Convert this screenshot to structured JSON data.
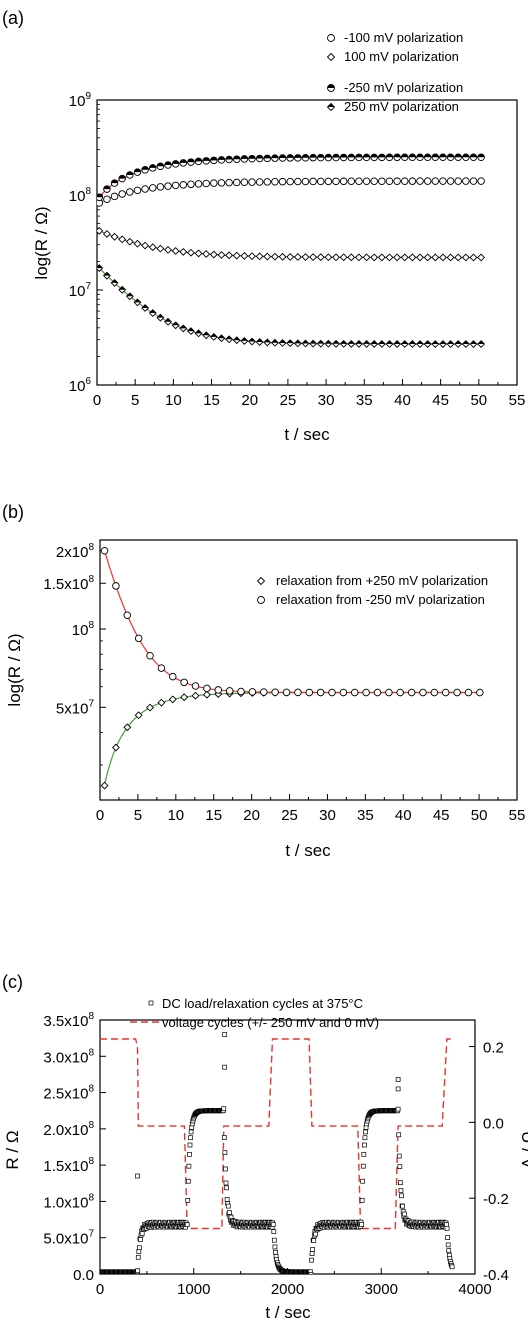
{
  "chart_data": [
    {
      "type": "scatter",
      "panel_label": "(a)",
      "xlabel": "t / sec",
      "ylabel": "log(R / Ω)",
      "xlim": [
        0,
        55
      ],
      "ylim": [
        1000000,
        1000000000
      ],
      "yscale": "log",
      "x_ticks": [
        "0",
        "5",
        "10",
        "15",
        "20",
        "25",
        "30",
        "35",
        "40",
        "45",
        "50",
        "55"
      ],
      "y_ticks": [
        {
          "base": "10",
          "exp": "6"
        },
        {
          "base": "10",
          "exp": "7"
        },
        {
          "base": "10",
          "exp": "8"
        },
        {
          "base": "10",
          "exp": "9"
        }
      ],
      "legend_position": "top-right",
      "series": [
        {
          "name": "-100 mV polarization",
          "marker": "circle",
          "fit_color": "#e8332a",
          "start": 80000000,
          "end": 140000000,
          "tau": 7
        },
        {
          "name": "100 mV polarization",
          "marker": "diamond",
          "fit_color": "#4a9a3a",
          "start": 43000000,
          "end": 22000000,
          "tau": 6
        },
        {
          "name": "-250 mV polarization",
          "marker": "circle-half-top",
          "fit_color": "#e8332a",
          "start": 88000000,
          "end": 250000000,
          "tau": 7
        },
        {
          "name": "250 mV polarization",
          "marker": "diamond-half-top",
          "fit_color": "#4a9a3a",
          "start": 18000000,
          "end": 2700000,
          "tau": 4.5
        }
      ]
    },
    {
      "type": "scatter",
      "panel_label": "(b)",
      "xlabel": "t / sec",
      "ylabel": "log(R / Ω)",
      "xlim": [
        0,
        55
      ],
      "ylim": [
        22000000,
        220000000
      ],
      "yscale": "log",
      "x_ticks": [
        "0",
        "5",
        "10",
        "15",
        "20",
        "25",
        "30",
        "35",
        "40",
        "45",
        "50",
        "55"
      ],
      "y_ticks": [
        {
          "label": "5x10",
          "exp": "7",
          "value": 50000000
        },
        {
          "label": "10",
          "exp": "8",
          "value": 100000000
        },
        {
          "label": "1.5x10",
          "exp": "8",
          "value": 150000000
        },
        {
          "label": "2x10",
          "exp": "8",
          "value": 200000000
        }
      ],
      "legend_position": "top-right",
      "series": [
        {
          "name": "relaxation from +250 mV polarization",
          "marker": "diamond",
          "fit_color": "#4a9a3a",
          "start": 25000000,
          "end": 57000000,
          "tau": 4
        },
        {
          "name": "relaxation from -250 mV polarization",
          "marker": "circle",
          "fit_color": "#e8332a",
          "start": 200000000,
          "end": 57000000,
          "tau": 3.2
        }
      ]
    },
    {
      "type": "line",
      "panel_label": "(c)",
      "xlabel": "t / sec",
      "ylabel": "R / Ω",
      "y2label": "U / V",
      "xlim": [
        0,
        4000
      ],
      "ylim": [
        0,
        350000000
      ],
      "y2lim": [
        -0.4,
        0.27
      ],
      "x_ticks": [
        "0",
        "1000",
        "2000",
        "3000",
        "4000"
      ],
      "y_ticks": [
        {
          "label": "0.0",
          "exp": "",
          "value": 0
        },
        {
          "label": "5.0x10",
          "exp": "7",
          "value": 50000000
        },
        {
          "label": "1.0x10",
          "exp": "8",
          "value": 100000000
        },
        {
          "label": "1.5x10",
          "exp": "8",
          "value": 150000000
        },
        {
          "label": "2.0x10",
          "exp": "8",
          "value": 200000000
        },
        {
          "label": "2.5x10",
          "exp": "8",
          "value": 250000000
        },
        {
          "label": "3.0x10",
          "exp": "8",
          "value": 300000000
        },
        {
          "label": "3.5x10",
          "exp": "8",
          "value": 350000000
        }
      ],
      "y2_ticks": [
        "-0.4",
        "-0.2",
        "0.0",
        "0.2"
      ],
      "y2_tick_values": [
        -0.4,
        -0.2,
        0.0,
        0.2
      ],
      "legend_position": "top",
      "series": [
        {
          "name": "DC load/relaxation cycles at 375°C",
          "marker": "square"
        },
        {
          "name": "voltage cycles (+/- 250 mV and 0 mV)",
          "style": "dashed",
          "color": "#e8332a"
        }
      ],
      "resistance_segments": [
        {
          "t0": 0,
          "t1": 400,
          "level": 3000000
        },
        {
          "t0": 400,
          "t1": 930,
          "level": 68000000
        },
        {
          "t0": 930,
          "t1": 1320,
          "level": 225000000
        },
        {
          "t0": 1320,
          "t1": 1850,
          "level": 68000000
        },
        {
          "t0": 1850,
          "t1": 2250,
          "level": 3000000
        },
        {
          "t0": 2250,
          "t1": 2790,
          "level": 68000000
        },
        {
          "t0": 2790,
          "t1": 3180,
          "level": 225000000
        },
        {
          "t0": 3180,
          "t1": 3700,
          "level": 68000000
        },
        {
          "t0": 3700,
          "t1": 3760,
          "level": 3000000
        }
      ],
      "resistance_spikes": [
        [
          400,
          135000000
        ],
        [
          1330,
          330000000
        ],
        [
          1330,
          285000000
        ],
        [
          3180,
          268000000
        ],
        [
          3180,
          255000000
        ]
      ],
      "voltage_cycle": [
        [
          0,
          0.22
        ],
        [
          380,
          0.22
        ],
        [
          400,
          0.2
        ],
        [
          410,
          -0.01
        ],
        [
          900,
          -0.01
        ],
        [
          930,
          -0.28
        ],
        [
          1300,
          -0.28
        ],
        [
          1320,
          -0.01
        ],
        [
          1800,
          -0.01
        ],
        [
          1840,
          0.22
        ],
        [
          2230,
          0.22
        ],
        [
          2260,
          -0.01
        ],
        [
          2750,
          -0.01
        ],
        [
          2780,
          -0.28
        ],
        [
          3150,
          -0.28
        ],
        [
          3180,
          -0.01
        ],
        [
          3650,
          -0.01
        ],
        [
          3700,
          0.22
        ],
        [
          3750,
          0.22
        ]
      ]
    }
  ]
}
